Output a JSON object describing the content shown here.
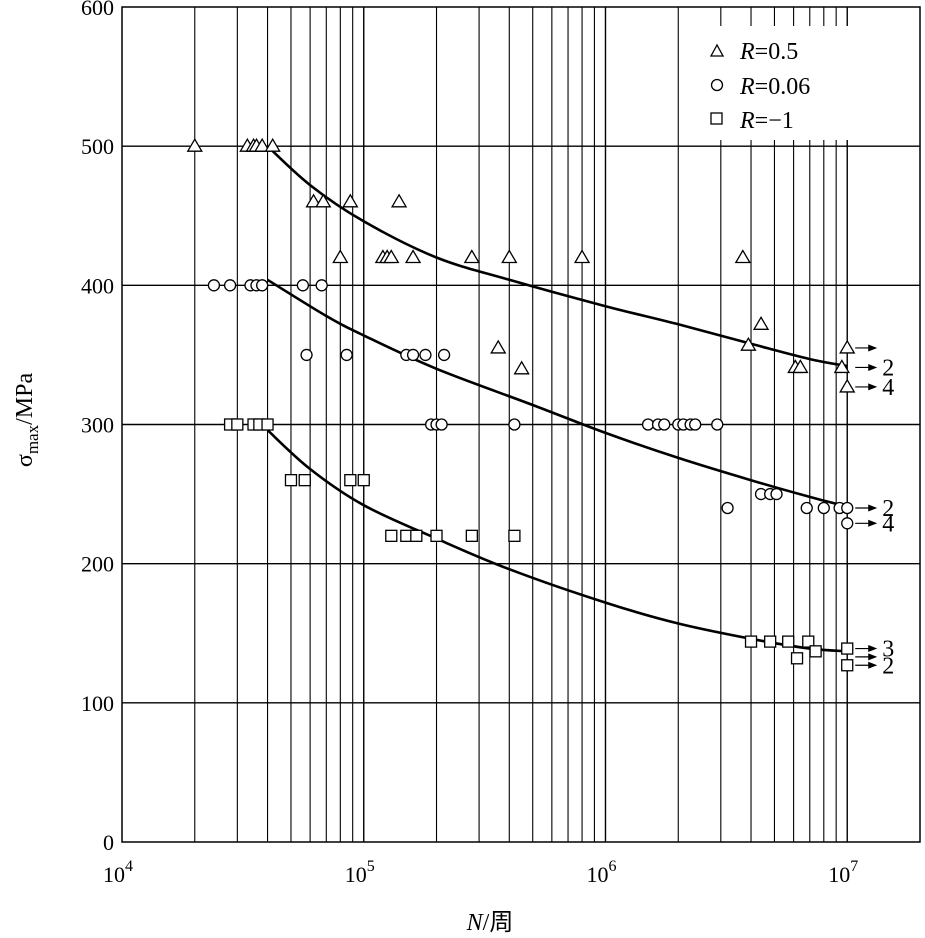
{
  "chart_data": {
    "type": "scatter",
    "x_scale": "log",
    "xlim": [
      10000,
      20000000
    ],
    "ylim": [
      0,
      600
    ],
    "grid": true,
    "legend_position": "top-right",
    "x_tick_labels": [
      {
        "value": 10000,
        "base": "10",
        "exp": "4"
      },
      {
        "value": 100000,
        "base": "10",
        "exp": "5"
      },
      {
        "value": 1000000,
        "base": "10",
        "exp": "6"
      },
      {
        "value": 10000000,
        "base": "10",
        "exp": "7"
      }
    ],
    "y_ticks": [
      0,
      100,
      200,
      300,
      400,
      500,
      600
    ],
    "xlabel": {
      "main": "N",
      "suffix": "/周"
    },
    "ylabel": {
      "main": "σ",
      "sub": "max",
      "suffix": "/MPa"
    },
    "series": [
      {
        "name": "R=0.5",
        "name_var": "R",
        "name_rest": "=0.5",
        "marker": "triangle",
        "points": [
          [
            20000,
            500
          ],
          [
            33000,
            500
          ],
          [
            35000,
            500
          ],
          [
            36000,
            500
          ],
          [
            38000,
            500
          ],
          [
            42000,
            500
          ],
          [
            62000,
            460
          ],
          [
            68000,
            460
          ],
          [
            88000,
            460
          ],
          [
            140000,
            460
          ],
          [
            80000,
            420
          ],
          [
            120000,
            420
          ],
          [
            125000,
            420
          ],
          [
            130000,
            420
          ],
          [
            160000,
            420
          ],
          [
            280000,
            420
          ],
          [
            400000,
            420
          ],
          [
            800000,
            420
          ],
          [
            3700000,
            420
          ],
          [
            4400000,
            372
          ],
          [
            3900000,
            357
          ],
          [
            360000,
            355
          ],
          [
            450000,
            340
          ],
          [
            6100000,
            341
          ],
          [
            6400000,
            341
          ],
          [
            9500000,
            341
          ],
          [
            10000000,
            355
          ],
          [
            10000000,
            327
          ]
        ],
        "curve": [
          [
            40000,
            500
          ],
          [
            60000,
            472
          ],
          [
            100000,
            446
          ],
          [
            200000,
            420
          ],
          [
            400000,
            404
          ],
          [
            1000000,
            385
          ],
          [
            2000000,
            372
          ],
          [
            4000000,
            358
          ],
          [
            7000000,
            347
          ],
          [
            10000000,
            342
          ]
        ]
      },
      {
        "name": "R=0.06",
        "name_var": "R",
        "name_rest": "=0.06",
        "marker": "circle",
        "points": [
          [
            24000,
            400
          ],
          [
            28000,
            400
          ],
          [
            34000,
            400
          ],
          [
            36000,
            400
          ],
          [
            38000,
            400
          ],
          [
            56000,
            400
          ],
          [
            67000,
            400
          ],
          [
            58000,
            350
          ],
          [
            85000,
            350
          ],
          [
            150000,
            350
          ],
          [
            160000,
            350
          ],
          [
            180000,
            350
          ],
          [
            215000,
            350
          ],
          [
            190000,
            300
          ],
          [
            200000,
            300
          ],
          [
            210000,
            300
          ],
          [
            420000,
            300
          ],
          [
            1500000,
            300
          ],
          [
            1650000,
            300
          ],
          [
            1750000,
            300
          ],
          [
            2000000,
            300
          ],
          [
            2100000,
            300
          ],
          [
            2250000,
            300
          ],
          [
            2350000,
            300
          ],
          [
            2900000,
            300
          ],
          [
            3200000,
            240
          ],
          [
            4400000,
            250
          ],
          [
            4800000,
            250
          ],
          [
            5100000,
            250
          ],
          [
            6800000,
            240
          ],
          [
            8000000,
            240
          ],
          [
            9300000,
            240
          ],
          [
            10000000,
            240
          ],
          [
            10000000,
            229
          ]
        ],
        "curve": [
          [
            40000,
            404
          ],
          [
            70000,
            378
          ],
          [
            100000,
            364
          ],
          [
            200000,
            340
          ],
          [
            500000,
            314
          ],
          [
            1000000,
            294
          ],
          [
            2000000,
            276
          ],
          [
            4000000,
            260
          ],
          [
            7000000,
            248
          ],
          [
            10000000,
            241
          ]
        ]
      },
      {
        "name": "R=−1",
        "name_var": "R",
        "name_rest": "=−1",
        "marker": "square",
        "points": [
          [
            28000,
            300
          ],
          [
            30000,
            300
          ],
          [
            35000,
            300
          ],
          [
            37000,
            300
          ],
          [
            40000,
            300
          ],
          [
            50000,
            260
          ],
          [
            57000,
            260
          ],
          [
            88000,
            260
          ],
          [
            100000,
            260
          ],
          [
            130000,
            220
          ],
          [
            150000,
            220
          ],
          [
            165000,
            220
          ],
          [
            200000,
            220
          ],
          [
            280000,
            220
          ],
          [
            420000,
            220
          ],
          [
            4000000,
            144
          ],
          [
            4800000,
            144
          ],
          [
            5700000,
            144
          ],
          [
            6900000,
            144
          ],
          [
            7400000,
            137
          ],
          [
            6200000,
            132
          ],
          [
            10000000,
            139
          ],
          [
            10000000,
            127
          ]
        ],
        "curve": [
          [
            40000,
            296
          ],
          [
            60000,
            268
          ],
          [
            100000,
            242
          ],
          [
            200000,
            218
          ],
          [
            400000,
            196
          ],
          [
            1000000,
            172
          ],
          [
            2000000,
            157
          ],
          [
            4000000,
            146
          ],
          [
            7000000,
            139
          ],
          [
            10000000,
            137
          ]
        ]
      }
    ],
    "runouts": [
      {
        "y": 355,
        "label": ""
      },
      {
        "y": 341,
        "label": "2"
      },
      {
        "y": 327,
        "label": "4"
      },
      {
        "y": 240,
        "label": "2"
      },
      {
        "y": 229,
        "label": "4"
      },
      {
        "y": 139,
        "label": "3"
      },
      {
        "y": 133,
        "label": ""
      },
      {
        "y": 127,
        "label": "2"
      }
    ]
  }
}
